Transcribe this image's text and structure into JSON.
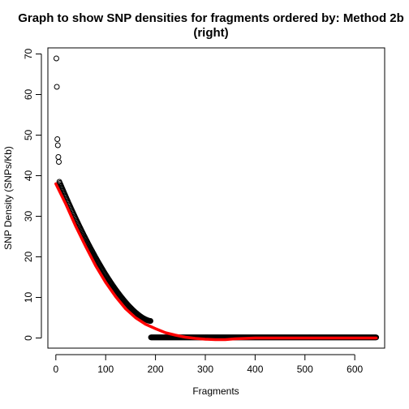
{
  "chart_data": {
    "type": "scatter",
    "title_line1": "Graph to show SNP densities for fragments ordered by: Method 2b",
    "title_line2": "(right)",
    "xlabel": "Fragments",
    "ylabel": "SNP Density (SNPs/Kb)",
    "xlim": [
      -16,
      660
    ],
    "ylim": [
      -2.5,
      71.5
    ],
    "xticks": [
      0,
      100,
      200,
      300,
      400,
      500,
      600
    ],
    "yticks": [
      0,
      10,
      20,
      30,
      40,
      50,
      60,
      70
    ],
    "point_color": "#000000",
    "trend_color": "#ff0000",
    "outliers": [
      {
        "x": 1,
        "y": 68.9
      },
      {
        "x": 2,
        "y": 61.9
      },
      {
        "x": 3,
        "y": 49.0
      },
      {
        "x": 4,
        "y": 47.5
      },
      {
        "x": 5,
        "y": 44.6
      },
      {
        "x": 6,
        "y": 43.4
      }
    ],
    "decay_series": {
      "x_start": 7,
      "x_end": 190,
      "count": 184,
      "y_start": 38.5,
      "y_end": 4.2
    },
    "zero_series": {
      "x_start": 191,
      "x_end": 643,
      "count": 453,
      "y": 0.15
    },
    "trend_line": {
      "x": [
        0,
        20,
        40,
        60,
        80,
        100,
        120,
        140,
        160,
        180,
        200,
        220,
        240,
        260,
        280,
        300,
        320,
        340,
        360,
        380,
        400,
        450,
        500,
        550,
        600,
        643
      ],
      "y": [
        38,
        33,
        27.5,
        22.5,
        17.8,
        13.7,
        10.2,
        7.2,
        5.0,
        3.4,
        2.3,
        1.3,
        0.7,
        0.2,
        -0.1,
        -0.3,
        -0.4,
        -0.4,
        -0.2,
        -0.1,
        0.0,
        0.0,
        0.0,
        0.0,
        0.0,
        0.0
      ]
    }
  }
}
